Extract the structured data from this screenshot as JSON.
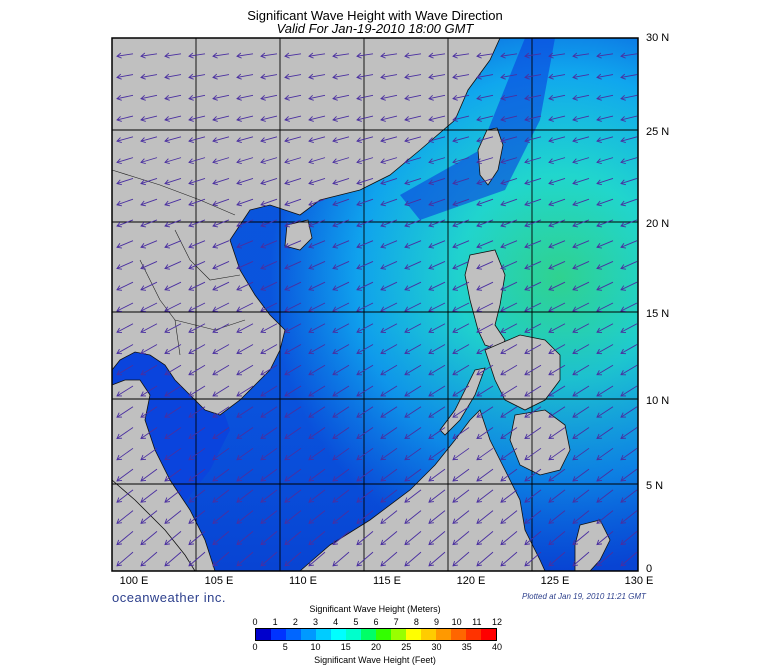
{
  "header": {
    "title": "Significant Wave Height with Wave Direction",
    "subtitle": "Valid For Jan-19-2010 18:00 GMT"
  },
  "map": {
    "latitude_labels": [
      "30 N",
      "25 N",
      "20 N",
      "15 N",
      "10 N",
      "5 N",
      "0"
    ],
    "longitude_labels": [
      "100 E",
      "105 E",
      "110 E",
      "115 E",
      "120 E",
      "125 E",
      "130 E"
    ],
    "wave_direction": "north-east wind driven, arrows point toward south-west",
    "colors": {
      "land": "#c0c0c0",
      "grid": "#000000",
      "arrow": "#4a2fa0"
    }
  },
  "footer": {
    "brand": "oceanweather inc.",
    "plotted": "Plotted at Jan 19, 2010 11:21 GMT"
  },
  "legend": {
    "meters_title": "Significant Wave Height (Meters)",
    "feet_title": "Significant Wave Height (Feet)",
    "meters_ticks": [
      "0",
      "1",
      "2",
      "3",
      "4",
      "5",
      "6",
      "7",
      "8",
      "9",
      "10",
      "11",
      "12"
    ],
    "feet_ticks": [
      "0",
      "5",
      "10",
      "15",
      "20",
      "25",
      "30",
      "35",
      "40"
    ],
    "colors": [
      "#0000cc",
      "#0033ff",
      "#0066ff",
      "#0099ff",
      "#00ccff",
      "#00ffff",
      "#00ffcc",
      "#00ff66",
      "#33ff00",
      "#99ff00",
      "#ffff00",
      "#ffcc00",
      "#ff9900",
      "#ff6600",
      "#ff3300",
      "#ff0000"
    ]
  }
}
